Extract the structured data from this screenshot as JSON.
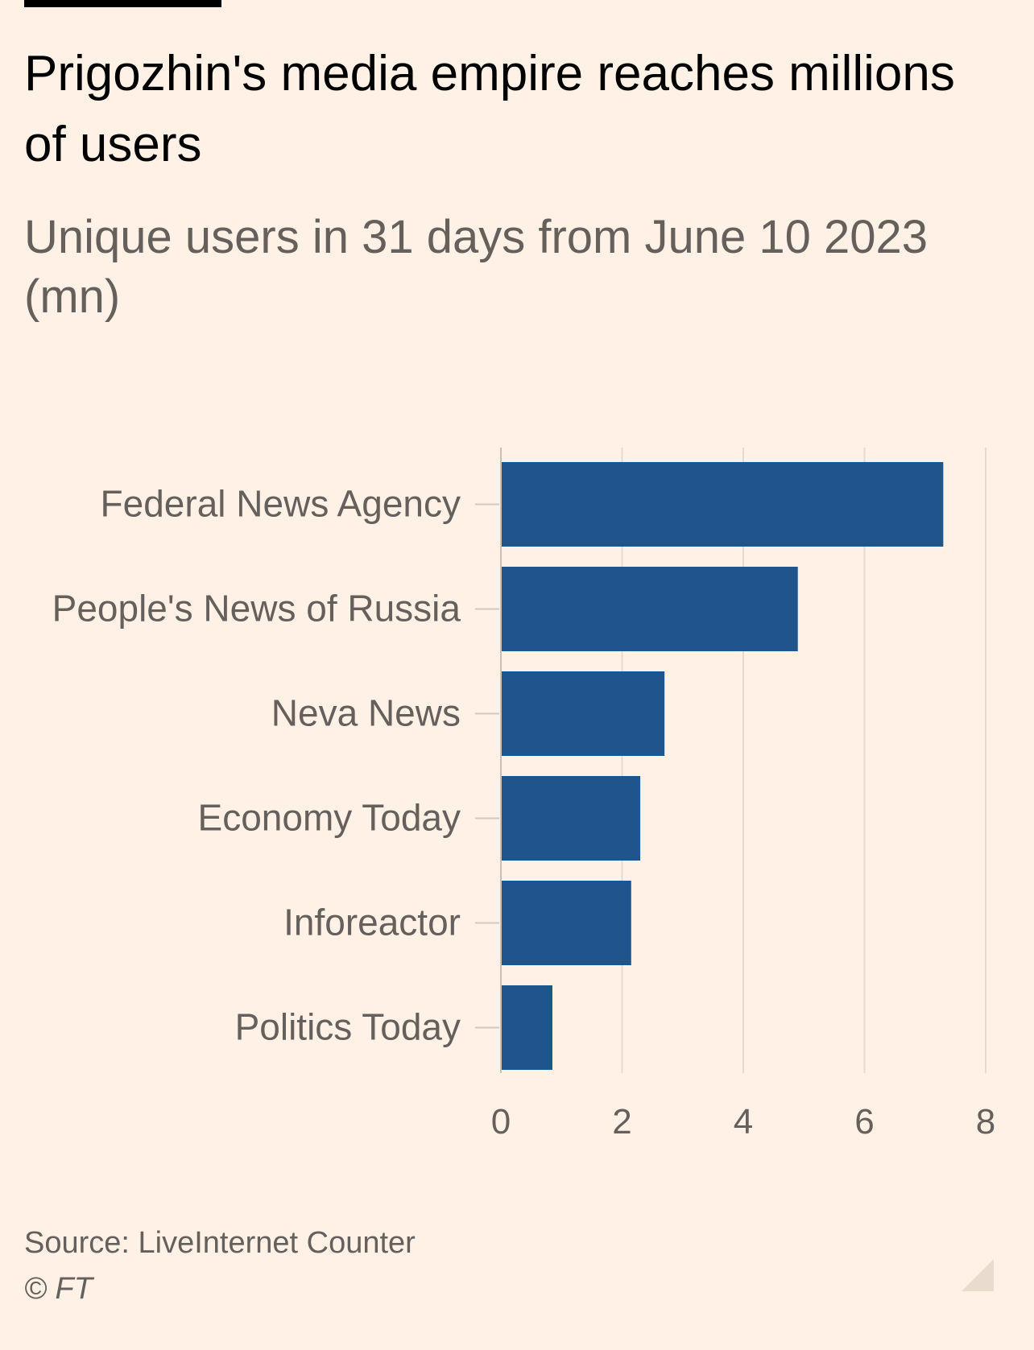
{
  "chart_data": {
    "type": "bar",
    "orientation": "horizontal",
    "title": "Prigozhin's media empire reaches millions of users",
    "subtitle": "Unique users in 31 days from June 10 2023 (mn)",
    "categories": [
      "Federal News Agency",
      "People's News of Russia",
      "Neva News",
      "Economy Today",
      "Inforeactor",
      "Politics Today"
    ],
    "values": [
      7.3,
      4.9,
      2.7,
      2.3,
      2.15,
      0.85
    ],
    "xlim": [
      0,
      8
    ],
    "xticks": [
      "0",
      "2",
      "4",
      "6",
      "8"
    ],
    "xlabel": "",
    "ylabel": "",
    "grid": true,
    "bar_color": "#1e558c",
    "source": "Source: LiveInternet Counter",
    "copyright": "© FT"
  }
}
